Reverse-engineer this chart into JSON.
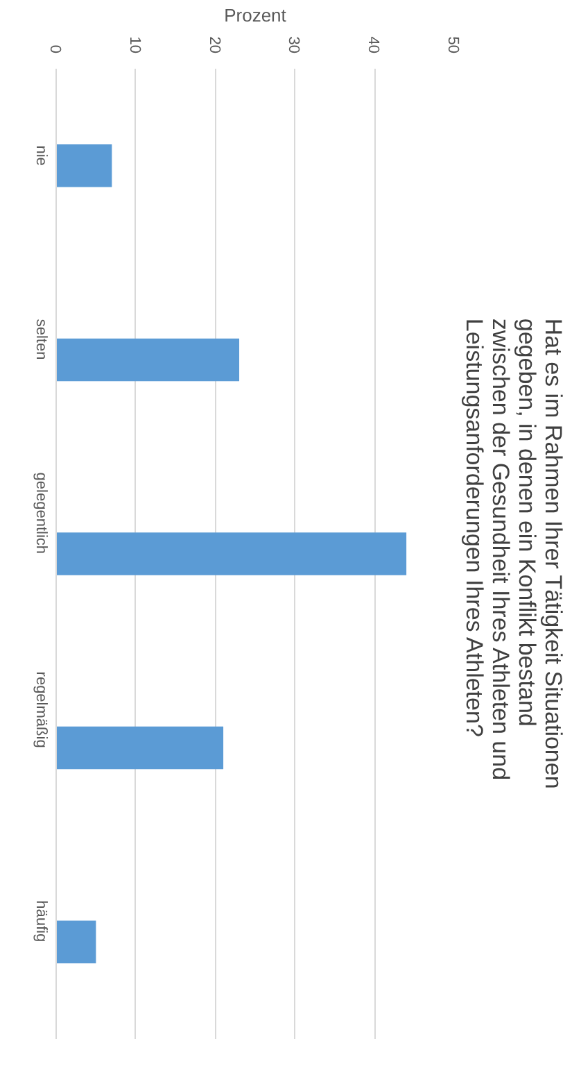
{
  "chart_data": {
    "type": "bar",
    "orientation": "horizontal",
    "title": "Hat es im Rahmen Ihrer Tätigkeit Situationen gegeben, in denen ein Konflikt bestand zwischen der Gesundheit Ihres Athleten und Leistungsanforderungen Ihres Athleten?",
    "xlabel": "Prozent",
    "categories": [
      "nie",
      "selten",
      "gelegentlich",
      "regelmäßig",
      "häufig"
    ],
    "values": [
      7,
      23,
      44,
      21,
      5
    ],
    "color": "#5b9bd5",
    "xlim": [
      0,
      50
    ],
    "xticks": [
      0,
      10,
      20,
      30,
      40,
      50
    ],
    "grid": "x"
  }
}
